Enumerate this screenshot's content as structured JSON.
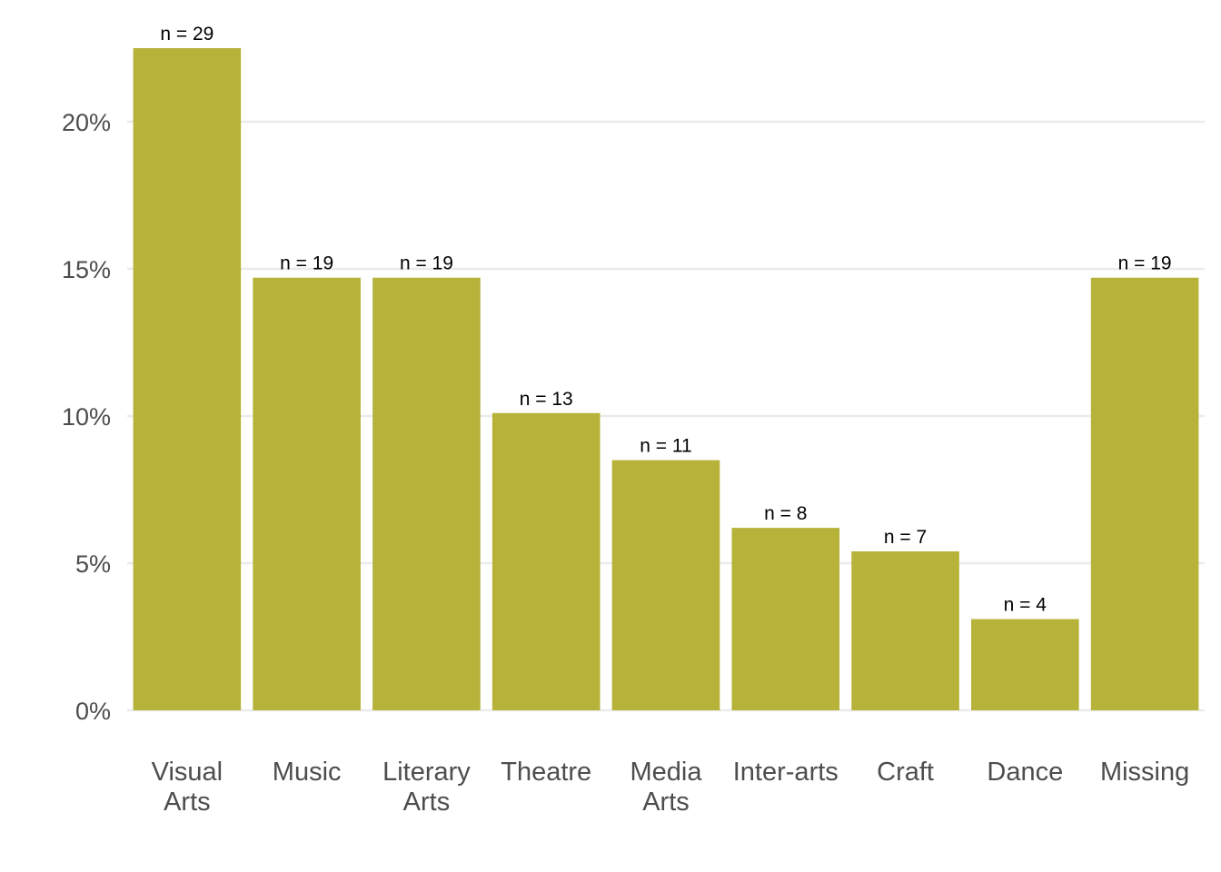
{
  "chart_data": {
    "type": "bar",
    "categories": [
      [
        "Visual",
        "Arts"
      ],
      [
        "Music"
      ],
      [
        "Literary",
        "Arts"
      ],
      [
        "Theatre"
      ],
      [
        "Media",
        "Arts"
      ],
      [
        "Inter-arts"
      ],
      [
        "Craft"
      ],
      [
        "Dance"
      ],
      [
        "Missing"
      ]
    ],
    "values": [
      22.5,
      14.7,
      14.7,
      10.1,
      8.5,
      6.2,
      5.4,
      3.1,
      14.7
    ],
    "data_labels": [
      "n = 29",
      "n = 19",
      "n = 19",
      "n = 13",
      "n = 11",
      "n = 8",
      "n = 7",
      "n = 4",
      "n = 19"
    ],
    "yticks": [
      0,
      5,
      10,
      15,
      20
    ],
    "ytick_labels": [
      "0%",
      "5%",
      "10%",
      "15%",
      "20%"
    ],
    "ylim": [
      0,
      23.5
    ],
    "grid": true,
    "bar_color": "#b7b23a",
    "title": "",
    "xlabel": "",
    "ylabel": ""
  }
}
